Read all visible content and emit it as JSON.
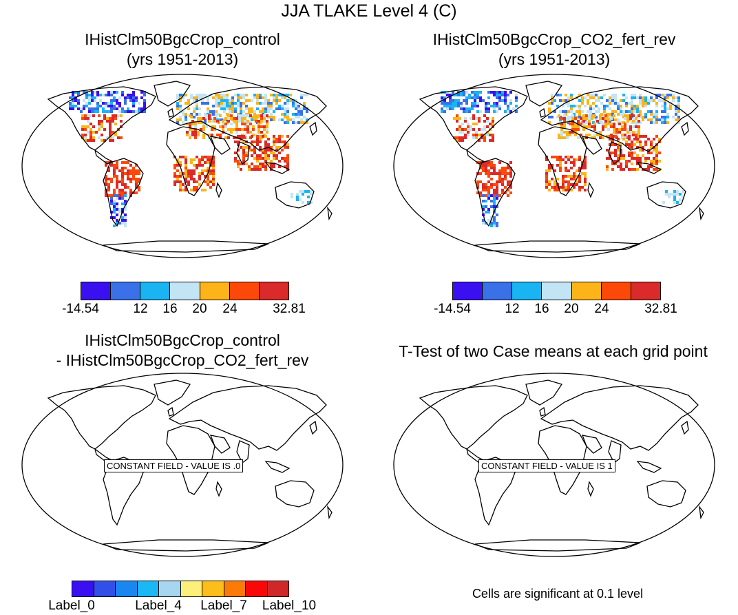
{
  "title": "JJA TLAKE Level 4 (C)",
  "panels": [
    {
      "line1": "IHistClm50BgcCrop_control",
      "line2": "(yrs 1951-2013)"
    },
    {
      "line1": "IHistClm50BgcCrop_CO2_fert_rev",
      "line2": "(yrs 1951-2013)"
    },
    {
      "line1": "IHistClm50BgcCrop_control",
      "line2": "- IHistClm50BgcCrop_CO2_fert_rev"
    },
    {
      "line1": "T-Test of two Case means at each grid point"
    }
  ],
  "colorbar_top": {
    "colors": [
      "#3a10f0",
      "#3a70e8",
      "#1ab4f2",
      "#c2e4f4",
      "#fcb418",
      "#fc4808",
      "#da2a2a"
    ],
    "labels": [
      "-14.54",
      "12",
      "16",
      "20",
      "24",
      "32.81"
    ]
  },
  "colorbar_bottom": {
    "colors": [
      "#3a10f0",
      "#3050e8",
      "#1a86f0",
      "#1ab8f4",
      "#a6d6f0",
      "#fcf07a",
      "#fcbe18",
      "#fc7a08",
      "#f80808",
      "#d02828"
    ],
    "labels": [
      "Label_0",
      "Label_4",
      "Label_7",
      "Label_10"
    ]
  },
  "constant_field_labels": [
    "CONSTANT FIELD - VALUE IS .0",
    "CONSTANT FIELD - VALUE IS 1"
  ],
  "significance_note": "Cells are significant at 0.1 level",
  "map_projection": "Robinson (world)"
}
